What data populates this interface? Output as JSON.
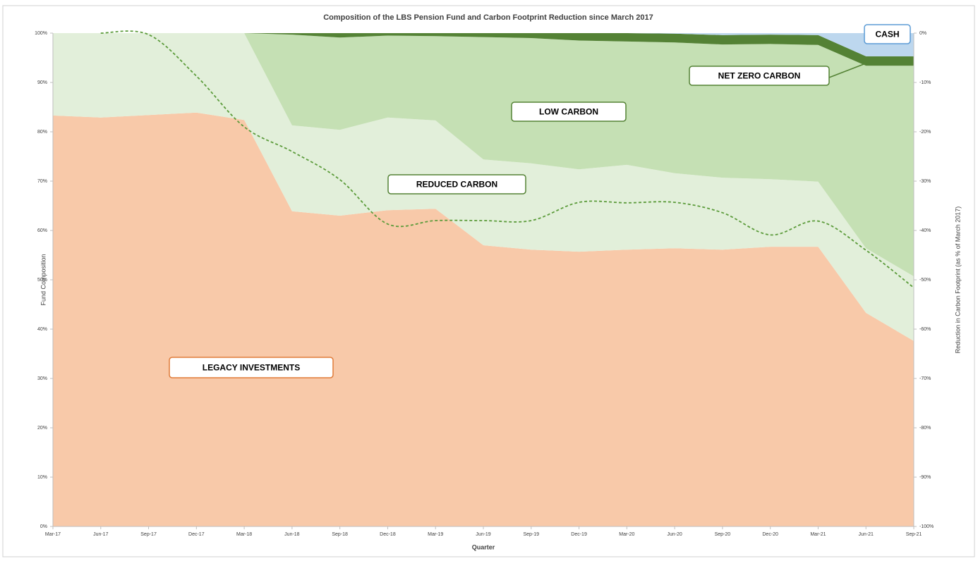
{
  "chart_data": {
    "type": "area",
    "stacked": true,
    "title": "Composition of the LBS Pension Fund and Carbon Footprint Reduction since March 2017",
    "x_label": "Quarter",
    "y_label": "Fund Composition",
    "y2_label": "Reduction in Carbon Footprint (as % of March 2017)",
    "categories": [
      "Mar-17",
      "Jun-17",
      "Sep-17",
      "Dec-17",
      "Mar-18",
      "Jun-18",
      "Sep-18",
      "Dec-18",
      "Mar-19",
      "Jun-19",
      "Sep-19",
      "Dec-19",
      "Mar-20",
      "Jun-20",
      "Sep-20",
      "Dec-20",
      "Mar-21",
      "Jun-21",
      "Sep-21"
    ],
    "series": [
      {
        "name": "LEGACY INVESTMENTS",
        "color": "#f8c9a9",
        "values": [
          83.3,
          82.9,
          83.4,
          83.9,
          82.4,
          63.9,
          63.0,
          64.1,
          64.4,
          57.0,
          56.1,
          55.7,
          56.1,
          56.4,
          56.1,
          56.7,
          56.7,
          43.3,
          37.6
        ]
      },
      {
        "name": "REDUCED CARBON",
        "color": "#e2efda",
        "values": [
          16.7,
          17.1,
          16.6,
          16.1,
          17.6,
          17.4,
          17.4,
          18.8,
          17.9,
          17.4,
          17.5,
          16.7,
          17.2,
          15.2,
          14.6,
          13.7,
          13.2,
          13.1,
          13.1
        ]
      },
      {
        "name": "LOW CARBON",
        "color": "#c5e0b4",
        "values": [
          0,
          0,
          0,
          0,
          0,
          18.4,
          18.7,
          16.6,
          17.1,
          24.8,
          25.4,
          26.1,
          25.0,
          26.5,
          27.0,
          27.4,
          27.7,
          37.0,
          42.7
        ]
      },
      {
        "name": "NET ZERO CARBON",
        "color": "#548235",
        "values": [
          0,
          0,
          0,
          0,
          0,
          0.3,
          0.9,
          0.5,
          0.6,
          0.8,
          1.0,
          1.5,
          1.7,
          1.8,
          1.9,
          1.9,
          2.0,
          1.9,
          1.9
        ]
      },
      {
        "name": "CASH",
        "color": "#bdd7ee",
        "values": [
          0,
          0,
          0,
          0,
          0,
          0,
          0,
          0,
          0,
          0,
          0,
          0,
          0,
          0.1,
          0.4,
          0.3,
          0.4,
          4.7,
          4.7
        ]
      },
      {
        "type": "line",
        "axis": "y2",
        "color": "#5b9b3a",
        "dashed": true,
        "values": [
          null,
          0,
          -0.3,
          -8.7,
          -19,
          -24,
          -29.7,
          -38.7,
          -38,
          -38,
          -38,
          -34.3,
          -34.4,
          -34.3,
          -36.4,
          -40.9,
          -38.1,
          -44,
          -51.6
        ]
      }
    ],
    "ylim": [
      0,
      100
    ],
    "yticks": [
      {
        "value": 0,
        "label": "0%"
      },
      {
        "value": 10,
        "label": "10%"
      },
      {
        "value": 20,
        "label": "20%"
      },
      {
        "value": 30,
        "label": "30%"
      },
      {
        "value": 40,
        "label": "40%"
      },
      {
        "value": 50,
        "label": "50%"
      },
      {
        "value": 60,
        "label": "60%"
      },
      {
        "value": 70,
        "label": "70%"
      },
      {
        "value": 80,
        "label": "80%"
      },
      {
        "value": 90,
        "label": "90%"
      },
      {
        "value": 100,
        "label": "100%"
      }
    ],
    "y2lim": [
      -100,
      0
    ],
    "y2ticks": [
      {
        "value": 0,
        "label": "0%"
      },
      {
        "value": -10,
        "label": "-10%"
      },
      {
        "value": -20,
        "label": "-20%"
      },
      {
        "value": -30,
        "label": "-30%"
      },
      {
        "value": -40,
        "label": "-40%"
      },
      {
        "value": -50,
        "label": "-50%"
      },
      {
        "value": -60,
        "label": "-60%"
      },
      {
        "value": -70,
        "label": "-70%"
      },
      {
        "value": -80,
        "label": "-80%"
      },
      {
        "value": -90,
        "label": "-90%"
      },
      {
        "value": -100,
        "label": "-100%"
      }
    ],
    "grid": false
  }
}
